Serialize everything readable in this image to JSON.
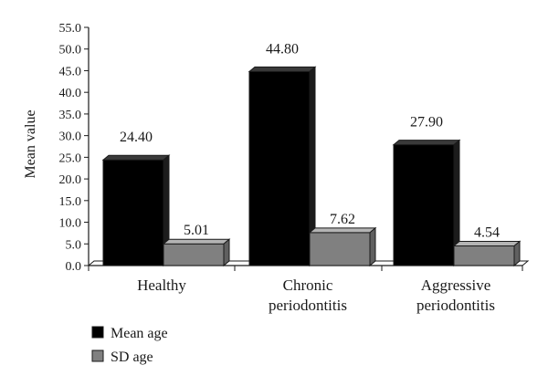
{
  "chart_data": {
    "type": "bar",
    "title": "",
    "xlabel": "",
    "ylabel": "Mean value",
    "ylim": [
      0,
      55
    ],
    "ytick_labels": [
      "0.0",
      "5.0",
      "10.0",
      "15.0",
      "20.0",
      "25.0",
      "30.0",
      "35.0",
      "40.0",
      "45.0",
      "50.0",
      "55.0"
    ],
    "categories": [
      [
        "Healthy"
      ],
      [
        "Chronic",
        "periodontitis"
      ],
      [
        "Aggressive",
        "periodontitis"
      ]
    ],
    "series": [
      {
        "name": "Mean age",
        "values": [
          24.4,
          44.8,
          27.9
        ],
        "value_labels": [
          "24.40",
          "44.80",
          "27.90"
        ],
        "color": "#000000"
      },
      {
        "name": "SD age",
        "values": [
          5.01,
          7.62,
          4.54
        ],
        "value_labels": [
          "5.01",
          "7.62",
          "4.54"
        ],
        "color": "#808080"
      }
    ],
    "grid": false,
    "legend_position": "bottom-left",
    "style": "3d-bars"
  }
}
